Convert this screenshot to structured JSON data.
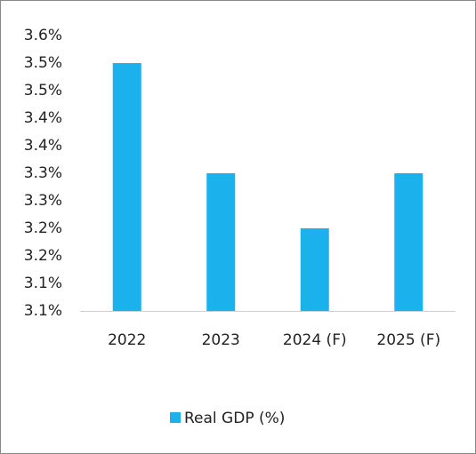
{
  "chart_data": {
    "type": "bar",
    "categories": [
      "2022",
      "2023",
      "2024 (F)",
      "2025 (F)"
    ],
    "series": [
      {
        "name": "Real GDP (%)",
        "color": "#1bb1ec",
        "values": [
          3.5,
          3.3,
          3.2,
          3.3
        ]
      }
    ],
    "ylim": [
      3.05,
      3.55
    ],
    "yticks": [
      {
        "value": 3.05,
        "label": "3.1%"
      },
      {
        "value": 3.1,
        "label": "3.1%"
      },
      {
        "value": 3.15,
        "label": "3.2%"
      },
      {
        "value": 3.2,
        "label": "3.2%"
      },
      {
        "value": 3.25,
        "label": "3.3%"
      },
      {
        "value": 3.3,
        "label": "3.3%"
      },
      {
        "value": 3.35,
        "label": "3.4%"
      },
      {
        "value": 3.4,
        "label": "3.4%"
      },
      {
        "value": 3.45,
        "label": "3.5%"
      },
      {
        "value": 3.5,
        "label": "3.5%"
      },
      {
        "value": 3.55,
        "label": "3.6%"
      }
    ],
    "grid": false,
    "legend": "bottom"
  }
}
